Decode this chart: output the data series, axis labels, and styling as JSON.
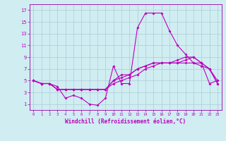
{
  "xlabel": "Windchill (Refroidissement éolien,°C)",
  "x": [
    0,
    1,
    2,
    3,
    4,
    5,
    6,
    7,
    8,
    9,
    10,
    11,
    12,
    13,
    14,
    15,
    16,
    17,
    18,
    19,
    20,
    21,
    22,
    23
  ],
  "line1": [
    5,
    4.5,
    4.5,
    4,
    2,
    2.5,
    2,
    1,
    0.8,
    2,
    7.5,
    4.5,
    4.5,
    14,
    16.5,
    16.5,
    16.5,
    13.5,
    11,
    9.5,
    8,
    7.5,
    7,
    5
  ],
  "line2": [
    5,
    4.5,
    4.5,
    3.5,
    3.5,
    3.5,
    3.5,
    3.5,
    3.5,
    3.5,
    4.5,
    5,
    5.5,
    6,
    7,
    7.5,
    8,
    8,
    8,
    8,
    8,
    8,
    4.5,
    5
  ],
  "line3": [
    5,
    4.5,
    4.5,
    3.5,
    3.5,
    3.5,
    3.5,
    3.5,
    3.5,
    3.5,
    5,
    5.5,
    6,
    7,
    7.5,
    8,
    8,
    8,
    8,
    8.5,
    9,
    8,
    7,
    4.5
  ],
  "line4": [
    5,
    4.5,
    4.5,
    3.5,
    3.5,
    3.5,
    3.5,
    3.5,
    3.5,
    3.5,
    5,
    6,
    6,
    7,
    7.5,
    8,
    8,
    8,
    8.5,
    9,
    9,
    8,
    7,
    4.5
  ],
  "ylim": [
    0,
    18
  ],
  "xlim": [
    -0.5,
    23.5
  ],
  "yticks": [
    1,
    3,
    5,
    7,
    9,
    11,
    13,
    15,
    17
  ],
  "xticks": [
    0,
    1,
    2,
    3,
    4,
    5,
    6,
    7,
    8,
    9,
    10,
    11,
    12,
    13,
    14,
    15,
    16,
    17,
    18,
    19,
    20,
    21,
    22,
    23
  ],
  "line_color": "#bb00bb",
  "bg_color": "#d0edf2",
  "grid_color": "#aacdd5",
  "spine_color": "#9900aa"
}
